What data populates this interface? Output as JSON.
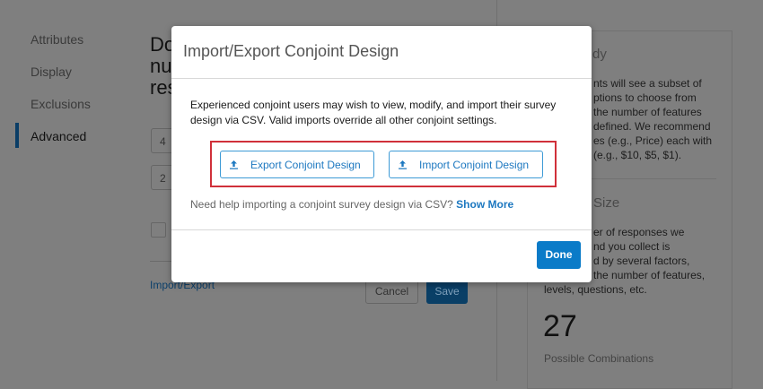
{
  "sidebar": {
    "items": [
      {
        "label": "Attributes"
      },
      {
        "label": "Display"
      },
      {
        "label": "Exclusions"
      },
      {
        "label": "Advanced",
        "active": true
      }
    ]
  },
  "main": {
    "heading_fragments": [
      "Do",
      "nu",
      "res"
    ],
    "inputs": [
      "4",
      "2"
    ],
    "import_export_link": "Import/Export",
    "cancel_label": "Cancel",
    "save_label": "Save"
  },
  "right_panel": {
    "study_heading_fragment": "dy",
    "study_lines": [
      "nts will see a subset of",
      "ptions to choose from",
      "the number of features",
      "defined. We recommend",
      "es (e.g., Price) each with",
      "(e.g., $10, $5, $1)."
    ],
    "size_heading_fragment": "Size",
    "size_lines": [
      "er of responses we",
      "nd you collect is",
      "d by several factors,",
      "the number of features,",
      "levels, questions, etc."
    ],
    "combinations_value": "27",
    "combinations_label": "Possible Combinations"
  },
  "modal": {
    "title": "Import/Export Conjoint Design",
    "description": "Experienced conjoint users may wish to view, modify, and import their survey design via CSV. Valid imports override all other conjoint settings.",
    "export_label": "Export Conjoint Design",
    "import_label": "Import Conjoint Design",
    "help_text": "Need help importing a conjoint survey design via CSV?",
    "show_more": "Show More",
    "done_label": "Done"
  },
  "colors": {
    "accent": "#0a7bc8",
    "highlight": "#d0303a",
    "overlay": "#7f7f7f"
  },
  "icons": {
    "export": "upload-icon",
    "import": "upload-icon"
  }
}
